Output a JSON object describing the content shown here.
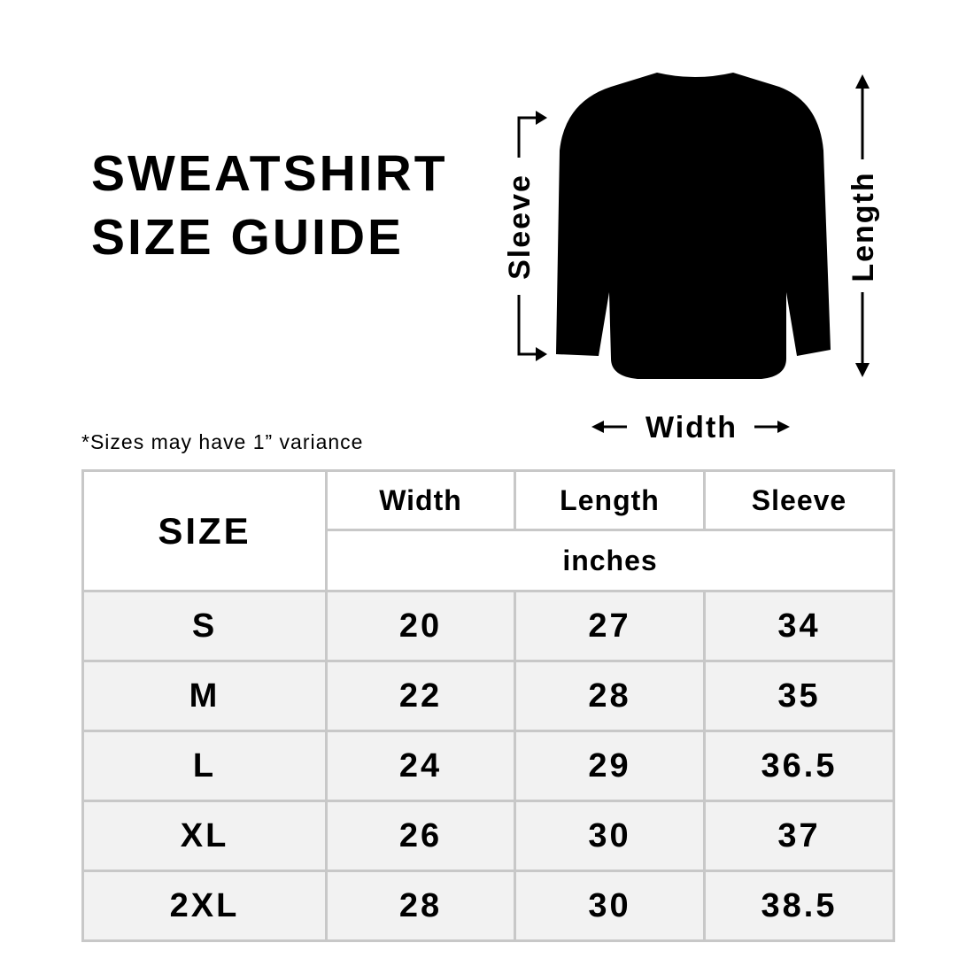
{
  "title_line1": "SWEATSHIRT",
  "title_line2": "SIZE GUIDE",
  "diagram": {
    "sleeve": "Sleeve",
    "length": "Length",
    "width": "Width",
    "garment_color": "#000000"
  },
  "note": "*Sizes may have 1” variance",
  "table": {
    "size_header": "SIZE",
    "columns": [
      "Width",
      "Length",
      "Sleeve"
    ],
    "unit": "inches",
    "rows": [
      {
        "size": "S",
        "values": [
          "20",
          "27",
          "34"
        ]
      },
      {
        "size": "M",
        "values": [
          "22",
          "28",
          "35"
        ]
      },
      {
        "size": "L",
        "values": [
          "24",
          "29",
          "36.5"
        ]
      },
      {
        "size": "XL",
        "values": [
          "26",
          "30",
          "37"
        ]
      },
      {
        "size": "2XL",
        "values": [
          "28",
          "30",
          "38.5"
        ]
      }
    ]
  }
}
